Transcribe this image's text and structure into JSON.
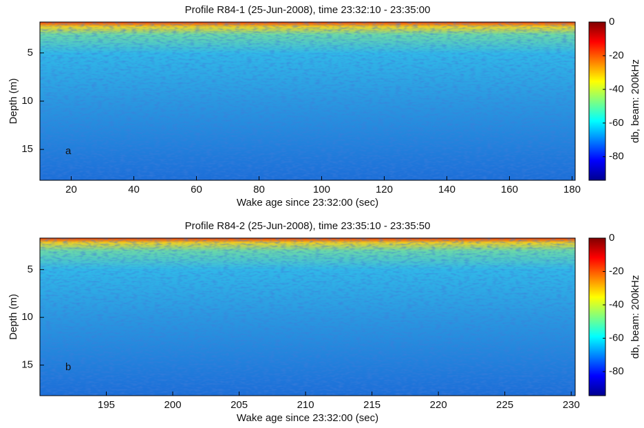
{
  "chart_data": [
    {
      "type": "heatmap",
      "title": "Profile R84-1 (25-Jun-2008), time 23:32:10 - 23:35:00",
      "xlabel": "Wake age since 23:32:00 (sec)",
      "ylabel": "Depth (m)",
      "annotation": "a",
      "xlim": [
        10,
        181
      ],
      "xticks": [
        20,
        40,
        60,
        80,
        100,
        120,
        140,
        160,
        180
      ],
      "ylim": [
        1.8,
        18.2
      ],
      "yticks": [
        5,
        10,
        15
      ],
      "colorbar": {
        "label": "db, beam: 200kHz",
        "lim": [
          -94,
          0
        ],
        "ticks": [
          0,
          -20,
          -40,
          -60,
          -80
        ]
      }
    },
    {
      "type": "heatmap",
      "title": "Profile R84-2 (25-Jun-2008), time 23:35:10 - 23:35:50",
      "xlabel": "Wake age since 23:32:00 (sec)",
      "ylabel": "Depth (m)",
      "annotation": "b",
      "xlim": [
        190,
        230.3
      ],
      "xticks": [
        195,
        200,
        205,
        210,
        215,
        220,
        225,
        230
      ],
      "ylim": [
        1.7,
        18.2
      ],
      "yticks": [
        5,
        10,
        15
      ],
      "colorbar": {
        "label": "db, beam: 200kHz",
        "lim": [
          -94.4,
          0
        ],
        "ticks": [
          0,
          -20,
          -40,
          -60,
          -80
        ]
      }
    }
  ]
}
